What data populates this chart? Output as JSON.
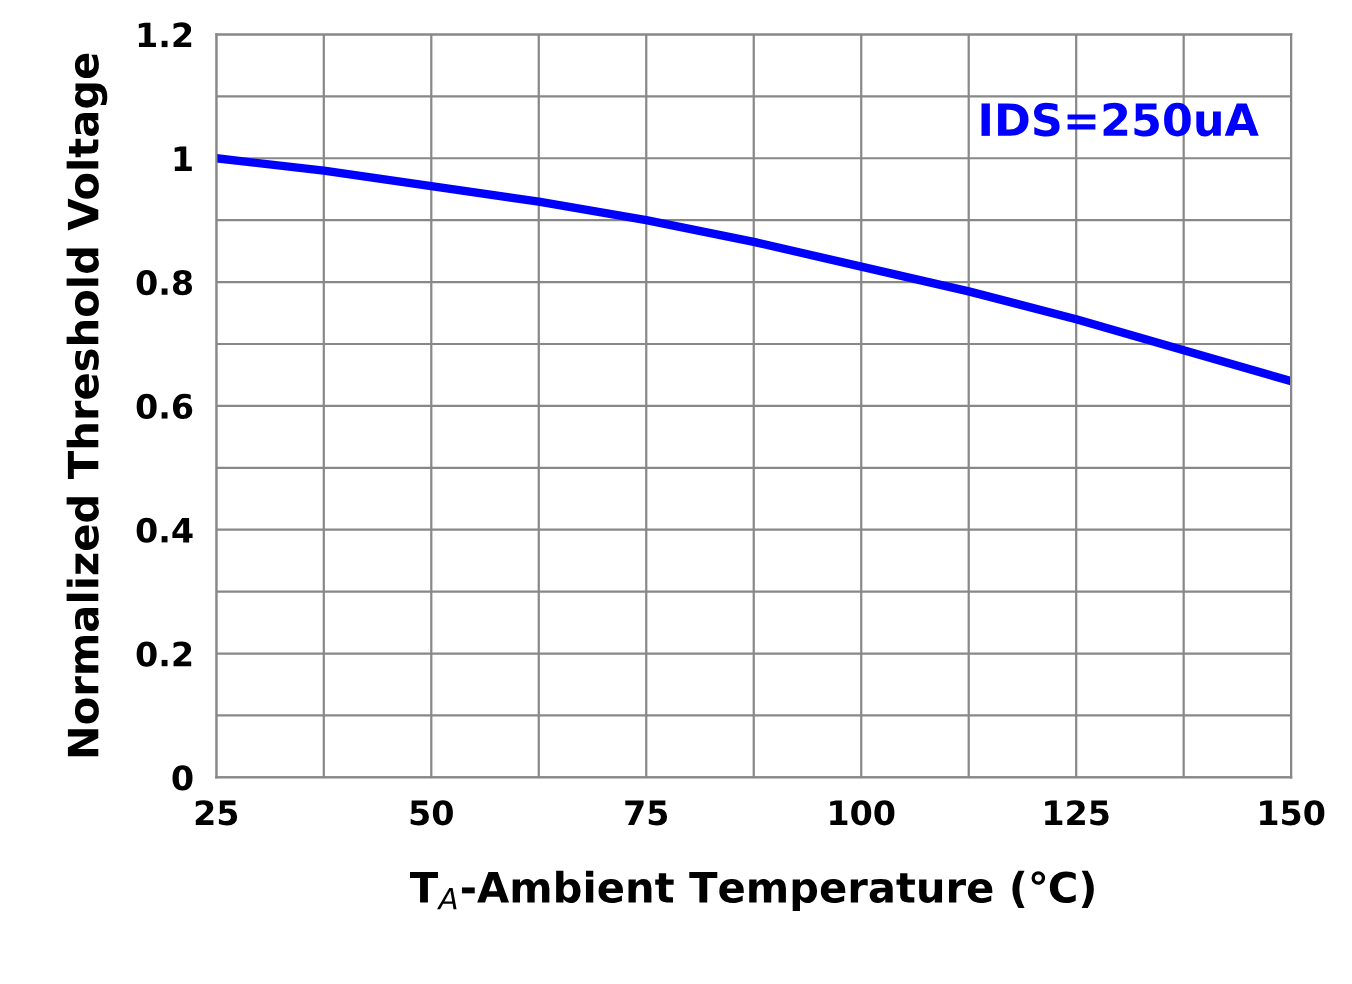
{
  "chart_data": {
    "type": "line",
    "xlabel": "T$_{A}$-Ambient Temperature (℃)",
    "ylabel": "Normalized Threshold Voltage",
    "annotations": [
      "IDS=250uA"
    ],
    "x": [
      25,
      37.5,
      50,
      62.5,
      75,
      87.5,
      100,
      112.5,
      125,
      137.5,
      150
    ],
    "series": [
      {
        "color": "#0000ff",
        "values": [
          1.0,
          0.98,
          0.955,
          0.93,
          0.9,
          0.865,
          0.825,
          0.785,
          0.74,
          0.69,
          0.64
        ]
      }
    ],
    "xlim": [
      25,
      150
    ],
    "ylim": [
      0,
      1.2
    ],
    "xticks": [
      25,
      {
        "value": 37.5,
        "label": null
      },
      50,
      {
        "value": 62.5,
        "label": null
      },
      75,
      {
        "value": 87.5,
        "label": null
      },
      100,
      {
        "value": 112.5,
        "label": null
      },
      125,
      {
        "value": 137.5,
        "label": null
      },
      150
    ],
    "yticks": [
      0,
      {
        "value": 0.1,
        "label": null
      },
      0.2,
      {
        "value": 0.3,
        "label": null
      },
      0.4,
      {
        "value": 0.5,
        "label": null
      },
      0.6,
      {
        "value": 0.7,
        "label": null
      },
      0.8,
      {
        "value": 0.9,
        "label": null
      },
      1,
      {
        "value": 1.1,
        "label": null
      },
      1.2
    ],
    "grid": true,
    "legend": false,
    "marker": "none",
    "line_style": "solid"
  }
}
